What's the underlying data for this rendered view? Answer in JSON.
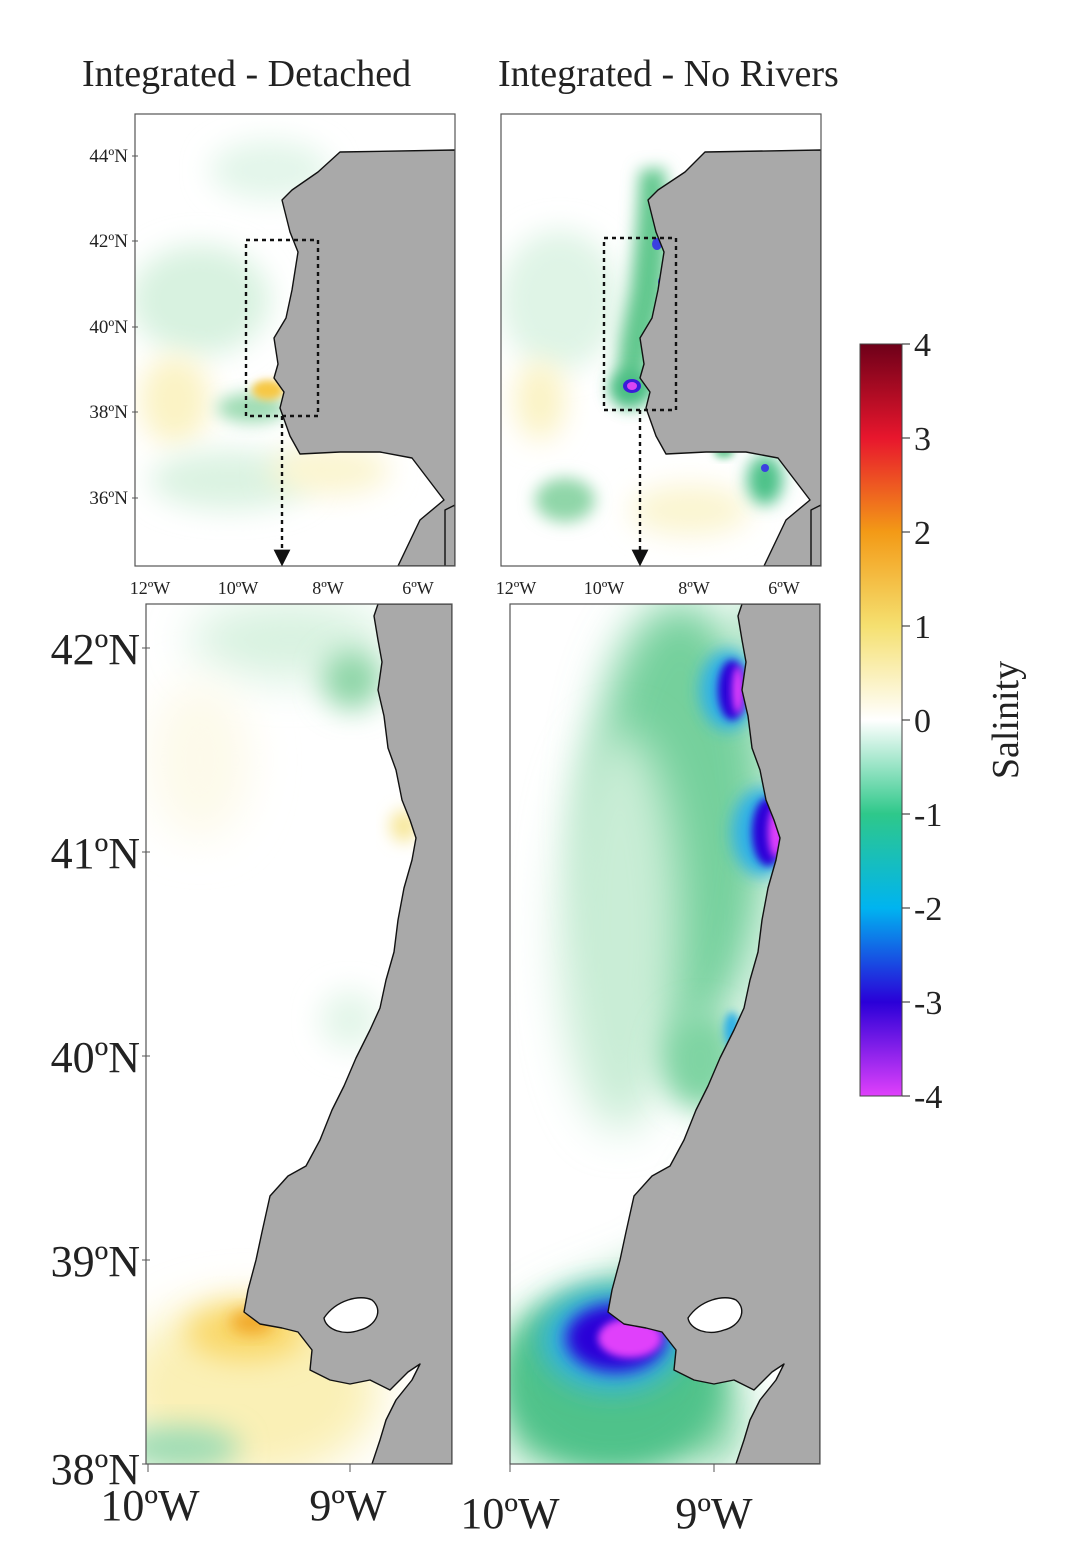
{
  "panels": {
    "left_title": "Integrated - Detached",
    "right_title": "Integrated - No Rivers"
  },
  "top_maps": {
    "lat_ticks": [
      "44ºN",
      "42ºN",
      "40ºN",
      "38ºN",
      "36ºN"
    ],
    "lon_ticks": [
      "12ºW",
      "10ºW",
      "8ºW",
      "6ºW"
    ]
  },
  "bottom_maps": {
    "lat_ticks": [
      "42ºN",
      "41ºN",
      "40ºN",
      "39ºN",
      "38ºN"
    ],
    "lon_ticks_left": [
      "10ºW",
      "9ºW"
    ],
    "lon_ticks_right": [
      "10ºW",
      "9ºW"
    ]
  },
  "colorbar": {
    "label": "Salinity",
    "ticks": [
      "4",
      "3",
      "2",
      "1",
      "0",
      "-1",
      "-2",
      "-3",
      "-4"
    ],
    "min": -4,
    "max": 4,
    "colors": [
      "#e040fb",
      "#2a00d8",
      "#00b4f0",
      "#2ec88a",
      "#ffffff",
      "#f5e070",
      "#f39a16",
      "#e8162d",
      "#6e0019"
    ]
  }
}
